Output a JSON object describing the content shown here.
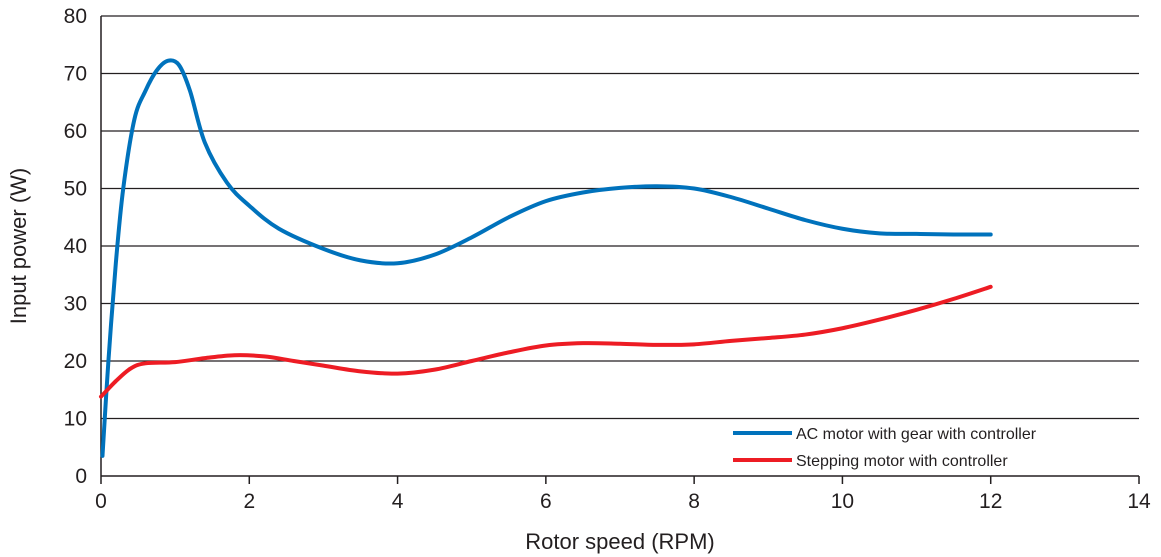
{
  "chart_data": {
    "type": "line",
    "title": "",
    "xlabel": "Rotor speed (RPM)",
    "ylabel": "Input power (W)",
    "xlim": [
      0,
      14
    ],
    "ylim": [
      0,
      80
    ],
    "x_ticks": [
      "0",
      "2",
      "4",
      "6",
      "8",
      "10",
      "12",
      "14"
    ],
    "y_ticks": [
      "0",
      "10",
      "20",
      "30",
      "40",
      "50",
      "60",
      "70",
      "80"
    ],
    "grid": "horizontal",
    "legend_position": "bottom-right",
    "series": [
      {
        "name": "AC motor with gear with controller",
        "color": "#0072bc",
        "points": [
          [
            0.02,
            3.5
          ],
          [
            0.1,
            20
          ],
          [
            0.2,
            37
          ],
          [
            0.3,
            50
          ],
          [
            0.45,
            62
          ],
          [
            0.6,
            67
          ],
          [
            0.75,
            70.5
          ],
          [
            0.9,
            72.2
          ],
          [
            1.05,
            71.5
          ],
          [
            1.2,
            67
          ],
          [
            1.4,
            58
          ],
          [
            1.7,
            51
          ],
          [
            2.0,
            47
          ],
          [
            2.4,
            43
          ],
          [
            3.0,
            39.5
          ],
          [
            3.5,
            37.5
          ],
          [
            4.0,
            37
          ],
          [
            4.5,
            38.5
          ],
          [
            5.0,
            41.5
          ],
          [
            5.5,
            45
          ],
          [
            6.0,
            47.8
          ],
          [
            6.5,
            49.3
          ],
          [
            7.0,
            50.1
          ],
          [
            7.5,
            50.4
          ],
          [
            8.0,
            50
          ],
          [
            8.5,
            48.5
          ],
          [
            9.0,
            46.5
          ],
          [
            9.5,
            44.5
          ],
          [
            10.0,
            43
          ],
          [
            10.5,
            42.2
          ],
          [
            11.0,
            42.1
          ],
          [
            11.5,
            42
          ],
          [
            12.0,
            42
          ]
        ]
      },
      {
        "name": "Stepping motor with controller",
        "color": "#ed1c24",
        "points": [
          [
            0.0,
            13.8
          ],
          [
            0.2,
            16.5
          ],
          [
            0.4,
            18.7
          ],
          [
            0.6,
            19.6
          ],
          [
            1.0,
            19.8
          ],
          [
            1.4,
            20.5
          ],
          [
            1.8,
            21
          ],
          [
            2.2,
            20.8
          ],
          [
            2.6,
            20
          ],
          [
            3.0,
            19.2
          ],
          [
            3.5,
            18.2
          ],
          [
            4.0,
            17.8
          ],
          [
            4.5,
            18.5
          ],
          [
            5.0,
            20
          ],
          [
            5.5,
            21.5
          ],
          [
            6.0,
            22.7
          ],
          [
            6.5,
            23.1
          ],
          [
            7.0,
            23
          ],
          [
            7.5,
            22.8
          ],
          [
            8.0,
            22.9
          ],
          [
            8.5,
            23.5
          ],
          [
            9.0,
            24
          ],
          [
            9.5,
            24.6
          ],
          [
            10.0,
            25.7
          ],
          [
            10.5,
            27.2
          ],
          [
            11.0,
            28.9
          ],
          [
            11.5,
            30.8
          ],
          [
            12.0,
            32.9
          ]
        ]
      }
    ]
  }
}
